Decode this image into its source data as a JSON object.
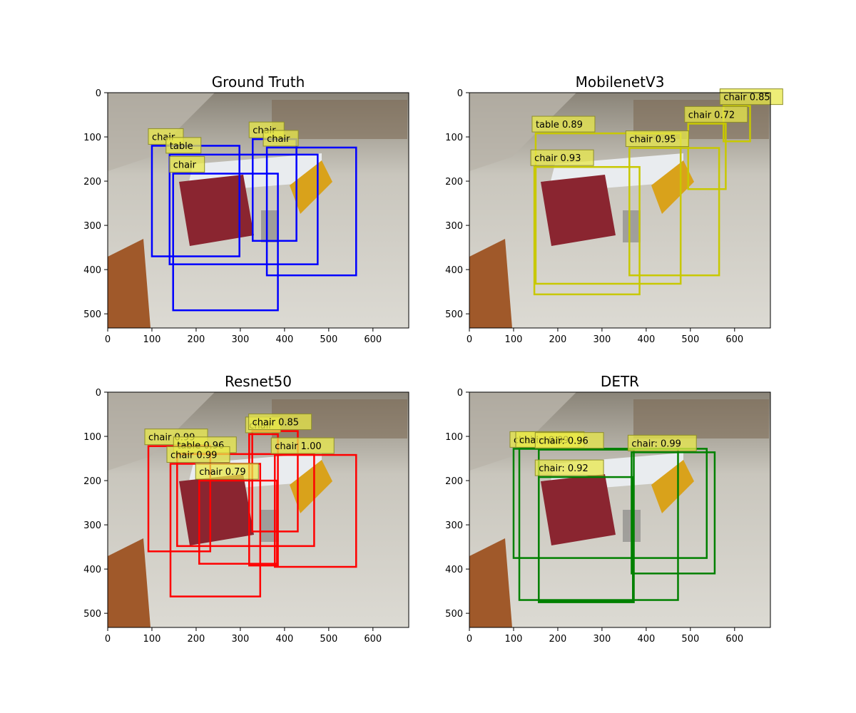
{
  "chart_data": [
    {
      "type": "image-detection",
      "title": "Ground Truth",
      "box_color": "#0000ff",
      "xticks": [
        0,
        100,
        200,
        300,
        400,
        500,
        600
      ],
      "yticks": [
        0,
        100,
        200,
        300,
        400,
        500
      ],
      "xlim": [
        0,
        681
      ],
      "ylim": [
        532,
        0
      ],
      "boxes": [
        {
          "label": "chair",
          "x1": 100,
          "y1": 120,
          "x2": 298,
          "y2": 370
        },
        {
          "label": "table",
          "x1": 140,
          "y1": 140,
          "x2": 475,
          "y2": 388
        },
        {
          "label": "chair",
          "x1": 148,
          "y1": 183,
          "x2": 385,
          "y2": 492
        },
        {
          "label": "chair",
          "x1": 328,
          "y1": 105,
          "x2": 427,
          "y2": 335
        },
        {
          "label": "chair",
          "x1": 360,
          "y1": 124,
          "x2": 562,
          "y2": 413
        }
      ]
    },
    {
      "type": "image-detection",
      "title": "MobilenetV3",
      "box_color": "#c8c800",
      "xticks": [
        0,
        100,
        200,
        300,
        400,
        500,
        600
      ],
      "yticks": [
        0,
        100,
        200,
        300,
        400,
        500
      ],
      "xlim": [
        0,
        681
      ],
      "ylim": [
        532,
        0
      ],
      "boxes": [
        {
          "label": "table 0.89",
          "x1": 150,
          "y1": 92,
          "x2": 478,
          "y2": 432
        },
        {
          "label": "chair 0.93",
          "x1": 147,
          "y1": 168,
          "x2": 385,
          "y2": 456
        },
        {
          "label": "chair 0.95",
          "x1": 362,
          "y1": 125,
          "x2": 565,
          "y2": 413
        },
        {
          "label": "chair 0.72",
          "x1": 495,
          "y1": 70,
          "x2": 580,
          "y2": 218
        },
        {
          "label": "chair 0.85",
          "x1": 575,
          "y1": 30,
          "x2": 635,
          "y2": 110
        }
      ]
    },
    {
      "type": "image-detection",
      "title": "Resnet50",
      "box_color": "#ff0000",
      "xticks": [
        0,
        100,
        200,
        300,
        400,
        500,
        600
      ],
      "yticks": [
        0,
        100,
        200,
        300,
        400,
        500
      ],
      "xlim": [
        0,
        681
      ],
      "ylim": [
        532,
        0
      ],
      "boxes": [
        {
          "label": "chair 0.99",
          "x1": 92,
          "y1": 122,
          "x2": 232,
          "y2": 360
        },
        {
          "label": "table 0.96",
          "x1": 157,
          "y1": 140,
          "x2": 467,
          "y2": 348
        },
        {
          "label": "chair 0.99",
          "x1": 142,
          "y1": 162,
          "x2": 345,
          "y2": 462
        },
        {
          "label": "chair 0.79",
          "x1": 207,
          "y1": 200,
          "x2": 383,
          "y2": 388
        },
        {
          "label": "chair",
          "x1": 320,
          "y1": 95,
          "x2": 385,
          "y2": 392
        },
        {
          "label": "chair 0.85",
          "x1": 327,
          "y1": 88,
          "x2": 430,
          "y2": 315
        },
        {
          "label": "chair 1.00",
          "x1": 378,
          "y1": 142,
          "x2": 562,
          "y2": 395
        }
      ]
    },
    {
      "type": "image-detection",
      "title": "DETR",
      "box_color": "#008000",
      "xticks": [
        0,
        100,
        200,
        300,
        400,
        500,
        600
      ],
      "yticks": [
        0,
        100,
        200,
        300,
        400,
        500
      ],
      "xlim": [
        0,
        681
      ],
      "ylim": [
        532,
        0
      ],
      "boxes": [
        {
          "label": "chair: 0.99",
          "x1": 100,
          "y1": 128,
          "x2": 537,
          "y2": 375
        },
        {
          "label": "chair: 0.99",
          "x1": 113,
          "y1": 128,
          "x2": 472,
          "y2": 470
        },
        {
          "label": "chair: 0.96",
          "x1": 157,
          "y1": 130,
          "x2": 372,
          "y2": 475
        },
        {
          "label": "chair: 0.92",
          "x1": 157,
          "y1": 192,
          "x2": 370,
          "y2": 472
        },
        {
          "label": "chair: 0.99",
          "x1": 367,
          "y1": 136,
          "x2": 555,
          "y2": 410
        }
      ]
    }
  ]
}
